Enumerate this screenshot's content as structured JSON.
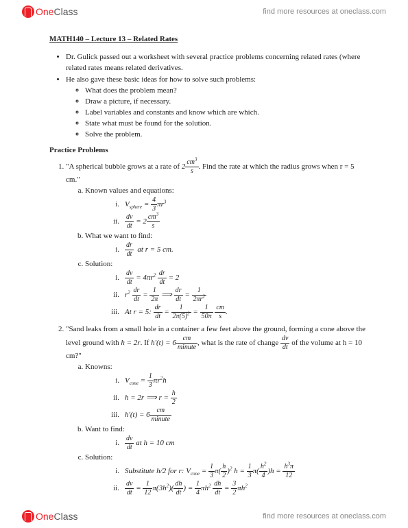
{
  "header": {
    "logo_one": "One",
    "logo_class": "Class",
    "resources": "find more resources at oneclass.com"
  },
  "footer": {
    "logo_one": "One",
    "logo_class": "Class",
    "resources": "find more resources at oneclass.com"
  },
  "title": "MATH140 – Lecture 13 – Related Rates",
  "intro_bullets": [
    "Dr. Gulick passed out a worksheet with several practice problems concerning related rates (where related rates means related derivatives.",
    "He also gave these basic ideas for how to solve such problems:"
  ],
  "steps": [
    "What does the problem mean?",
    "Draw a picture, if necessary.",
    "Label variables and constants and know which are which.",
    "State what must be found for the solution.",
    "Solve the problem."
  ],
  "practice_head": "Practice Problems",
  "p1": {
    "prompt_a": "\"A spherical bubble grows at a rate of ",
    "prompt_b": ". Find the rate at which the radius grows when r = 5 cm.\"",
    "a_label": "Known values and equations:",
    "b_label": "What we want to find:",
    "c_label": "Solution:"
  },
  "p2": {
    "prompt_a": "\"Sand leaks from a small hole in a container a few feet above the ground, forming a cone above the level ground with ",
    "prompt_b": ". If ",
    "prompt_c": ", what is the rate of change ",
    "prompt_d": " of the volume at h = 10 cm?\"",
    "a_label": "Knowns:",
    "b_label": "Want to find:",
    "c_label": "Solution:"
  }
}
